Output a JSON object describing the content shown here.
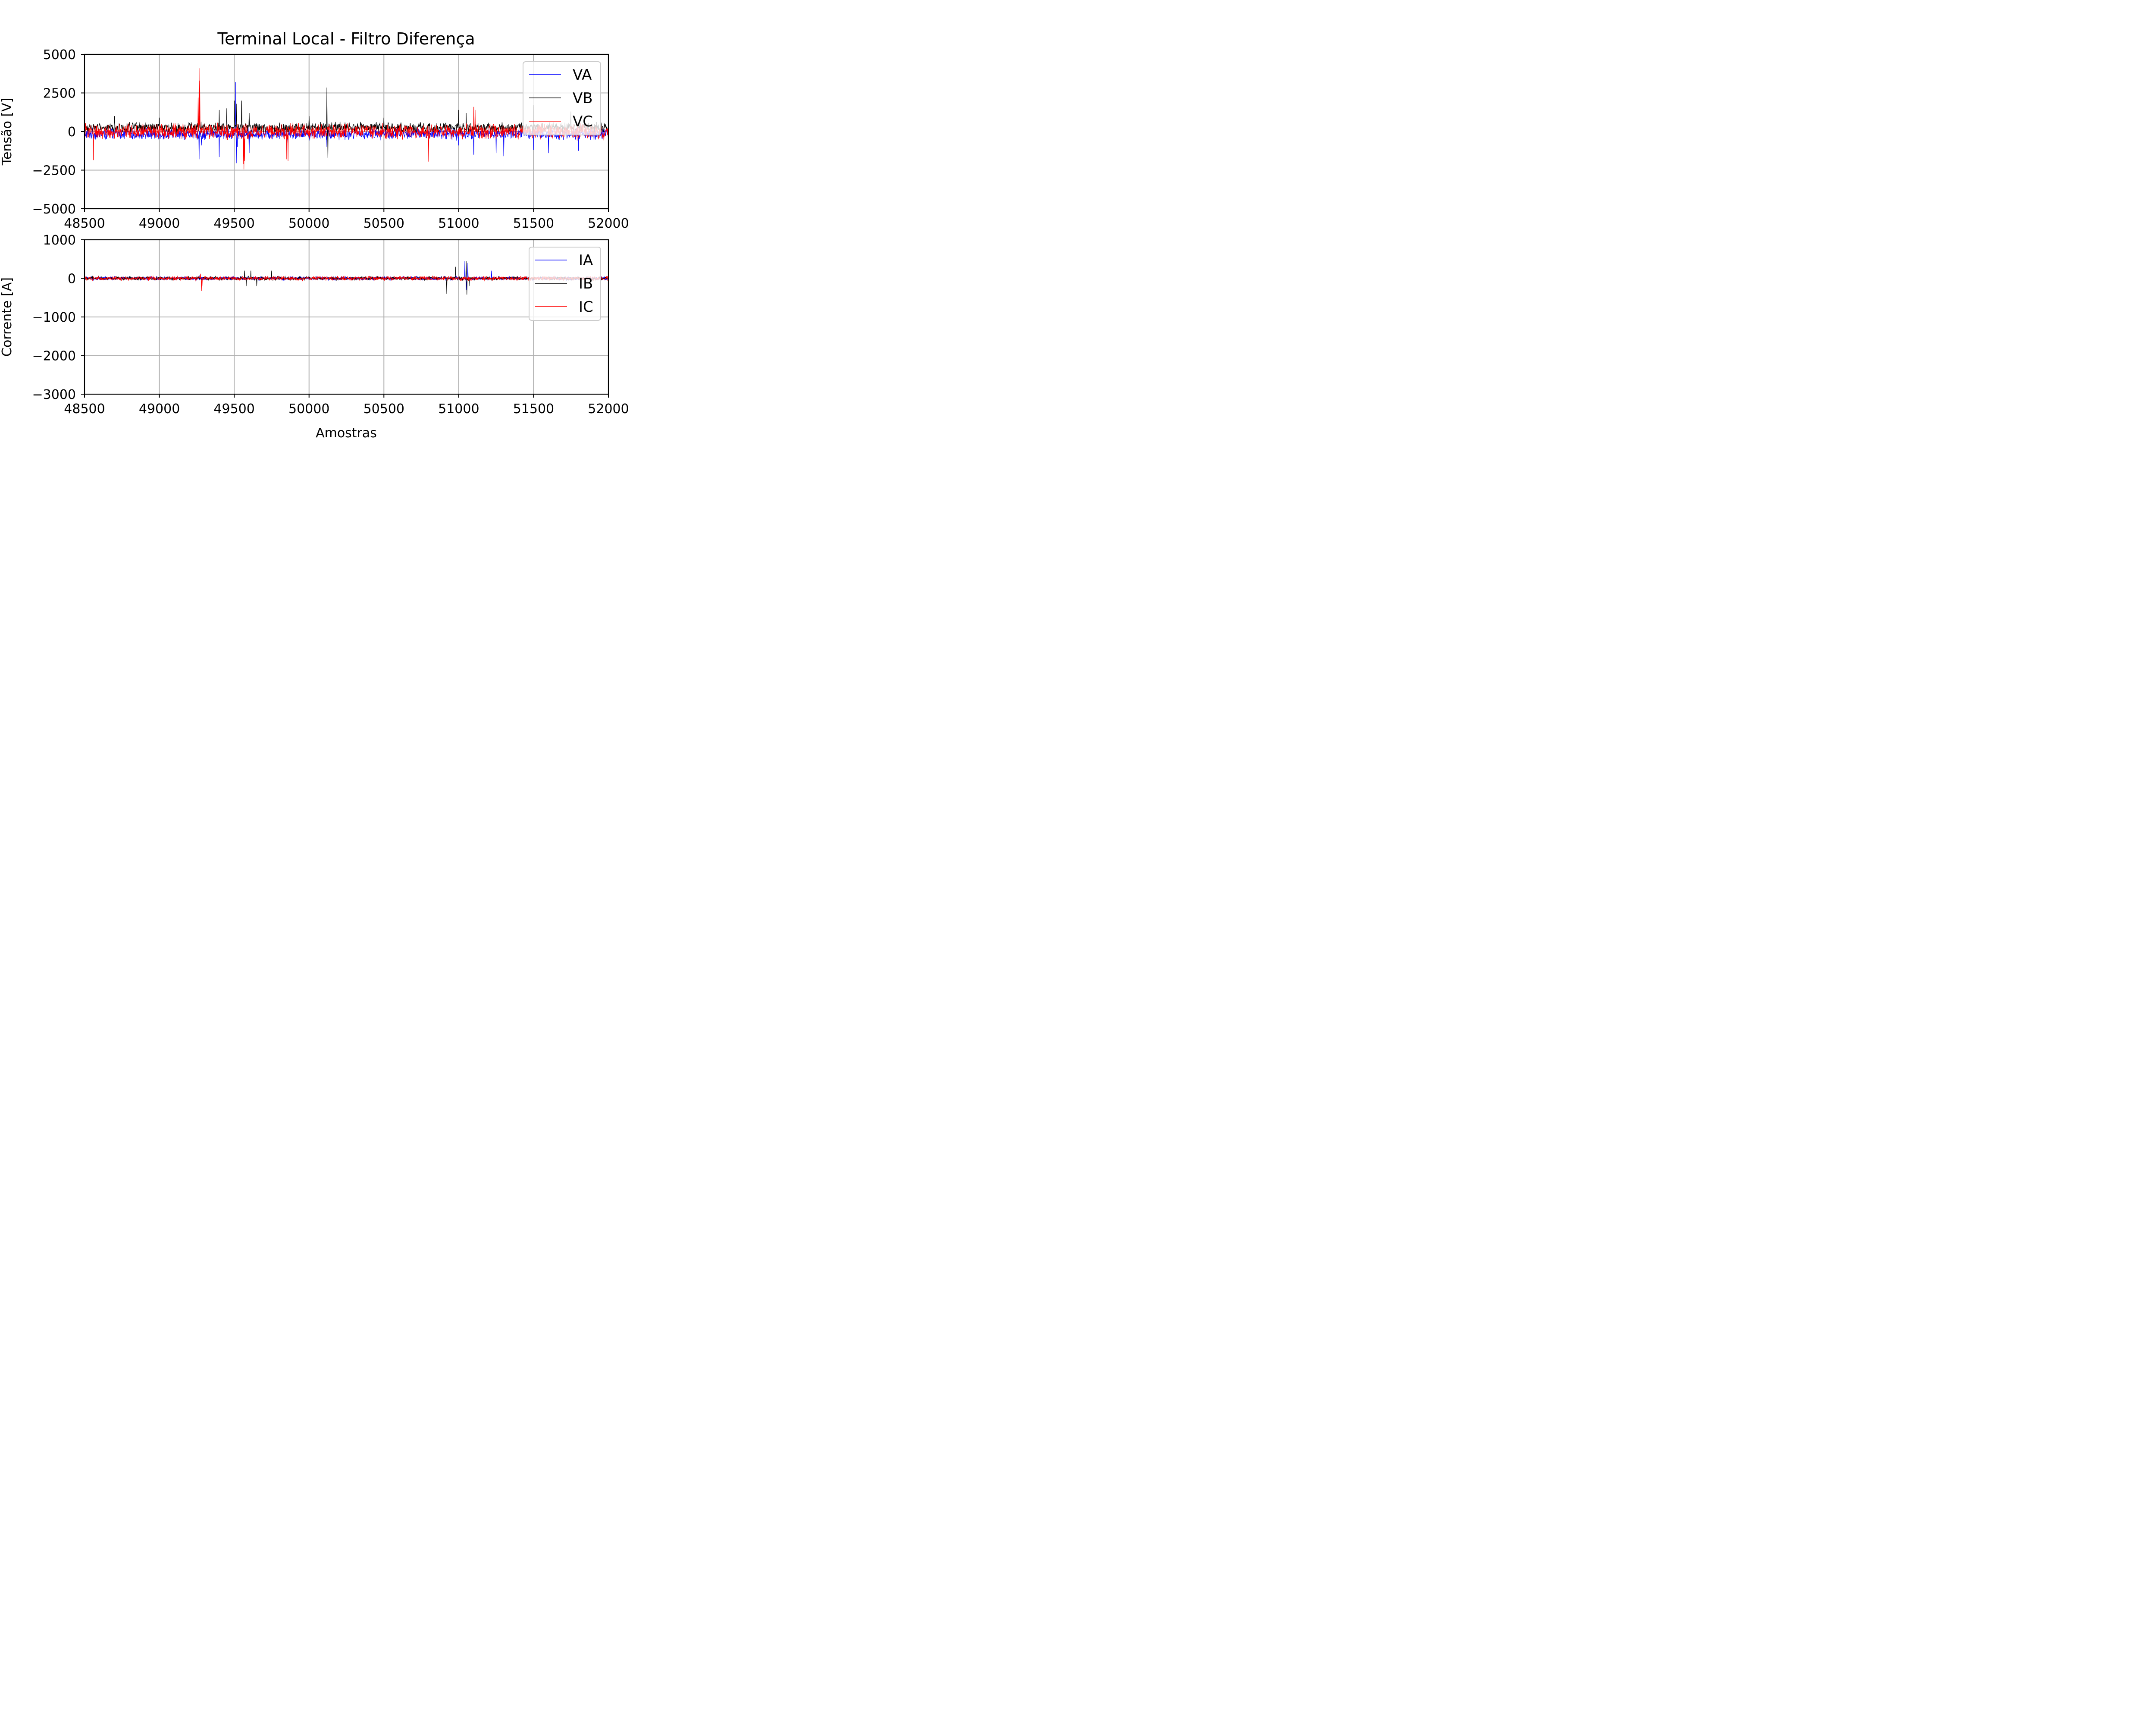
{
  "chart_data": [
    {
      "type": "line",
      "title": "Terminal Local - Filtro Diferença",
      "xlabel": "",
      "ylabel": "Tensão [V]",
      "xlim": [
        48500,
        52000
      ],
      "ylim": [
        -5000,
        5000
      ],
      "xticks": [
        "48500",
        "49000",
        "49500",
        "50000",
        "50500",
        "51000",
        "51500",
        "52000"
      ],
      "yticks": [
        "5000",
        "2500",
        "0",
        "−2500",
        "−5000"
      ],
      "xtick_values": [
        48500,
        49000,
        49500,
        50000,
        50500,
        51000,
        51500,
        52000
      ],
      "ytick_values": [
        5000,
        2500,
        0,
        -2500,
        -5000
      ],
      "grid": true,
      "legend_position": "upper-right",
      "series": [
        {
          "name": "VA",
          "color": "#0000ff",
          "baseline": -150,
          "noise_amplitude": 450,
          "x": [
            48500,
            49250,
            49265,
            49280,
            49400,
            49510,
            49515,
            49520,
            49560,
            49600,
            49850,
            50120,
            51000,
            51100,
            51250,
            51300,
            51500,
            51600,
            51800,
            52000
          ],
          "y": [
            -300,
            -200,
            -1800,
            -900,
            -1650,
            3200,
            -2050,
            -1000,
            -1300,
            -1400,
            -1200,
            -1000,
            -900,
            -1500,
            -1400,
            -1600,
            -1200,
            -1400,
            -1250,
            -400
          ]
        },
        {
          "name": "VB",
          "color": "#000000",
          "baseline": 250,
          "noise_amplitude": 400,
          "x": [
            48500,
            48700,
            49000,
            49270,
            49400,
            49450,
            49500,
            49515,
            49550,
            49600,
            50000,
            50120,
            50125,
            50500,
            51000,
            51050,
            51500,
            51750,
            52000
          ],
          "y": [
            500,
            1000,
            900,
            1000,
            1400,
            1500,
            2000,
            1800,
            2000,
            1200,
            1000,
            2850,
            -1700,
            900,
            1400,
            1200,
            1700,
            1300,
            500
          ]
        },
        {
          "name": "VC",
          "color": "#ff0000",
          "baseline": 0,
          "noise_amplitude": 600,
          "x": [
            48500,
            48560,
            49260,
            49265,
            49270,
            49560,
            49565,
            49570,
            49850,
            49860,
            50800,
            51100,
            51110,
            52000
          ],
          "y": [
            0,
            -1850,
            2200,
            4100,
            3300,
            -2100,
            -2450,
            -1900,
            -1800,
            -1900,
            -1950,
            1600,
            1400,
            0
          ]
        }
      ]
    },
    {
      "type": "line",
      "title": "",
      "xlabel": "Amostras",
      "ylabel": "Corrente [A]",
      "xlim": [
        48500,
        52000
      ],
      "ylim": [
        -3000,
        1000
      ],
      "xticks": [
        "48500",
        "49000",
        "49500",
        "50000",
        "50500",
        "51000",
        "51500",
        "52000"
      ],
      "yticks": [
        "1000",
        "0",
        "−1000",
        "−2000",
        "−3000"
      ],
      "xtick_values": [
        48500,
        49000,
        49500,
        50000,
        50500,
        51000,
        51500,
        52000
      ],
      "ytick_values": [
        1000,
        0,
        -1000,
        -2000,
        -3000
      ],
      "grid": true,
      "legend_position": "upper-right",
      "series": [
        {
          "name": "IA",
          "color": "#0000ff",
          "baseline": 0,
          "noise_amplitude": 60,
          "x": [
            49270,
            51040,
            51050,
            51060,
            51220
          ],
          "y": [
            80,
            450,
            -300,
            400,
            200
          ]
        },
        {
          "name": "IB",
          "color": "#000000",
          "baseline": 0,
          "noise_amplitude": 60,
          "x": [
            49570,
            49580,
            49610,
            49650,
            49750,
            50920,
            50980,
            51050,
            51055,
            51070
          ],
          "y": [
            200,
            -200,
            200,
            -200,
            200,
            -400,
            300,
            450,
            -420,
            -200
          ]
        },
        {
          "name": "IC",
          "color": "#ff0000",
          "baseline": 0,
          "noise_amplitude": 70,
          "x": [
            49275,
            49280,
            49285
          ],
          "y": [
            120,
            -330,
            -200
          ]
        }
      ]
    }
  ]
}
